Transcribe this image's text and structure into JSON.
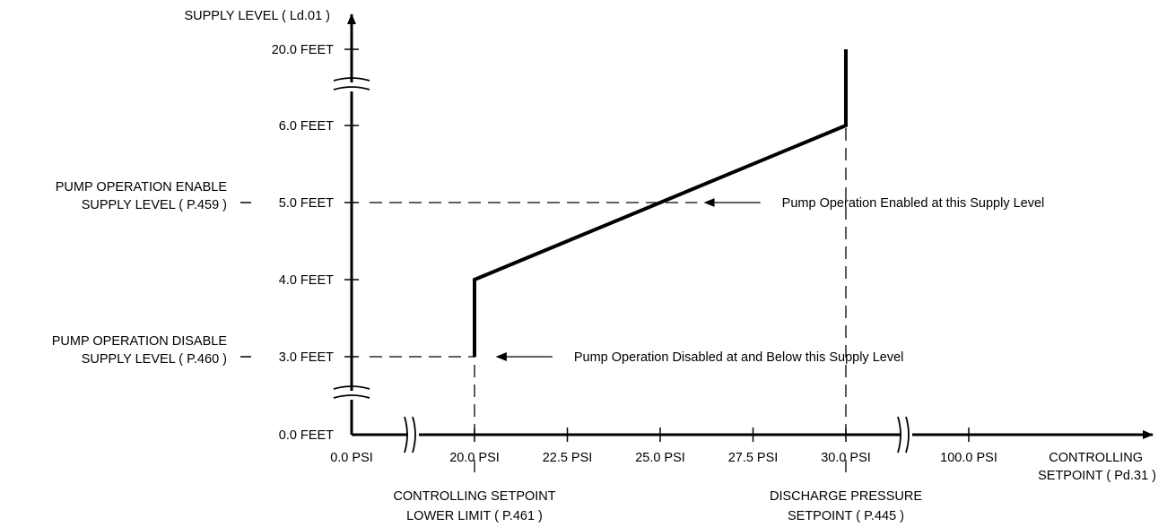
{
  "chart_data": {
    "type": "line",
    "ylabel": "SUPPLY LEVEL ( Ld.01 )",
    "xlabel": [
      "CONTROLLING",
      "SETPOINT ( Pd.31 )"
    ],
    "y_ticks": [
      {
        "value": 0.0,
        "label": "0.0 FEET"
      },
      {
        "value": 3.0,
        "label": "3.0 FEET"
      },
      {
        "value": 4.0,
        "label": "4.0 FEET"
      },
      {
        "value": 5.0,
        "label": "5.0 FEET"
      },
      {
        "value": 6.0,
        "label": "6.0 FEET"
      },
      {
        "value": 20.0,
        "label": "20.0 FEET"
      }
    ],
    "x_ticks": [
      {
        "value": 0.0,
        "label": "0.0 PSI"
      },
      {
        "value": 20.0,
        "label": "20.0 PSI"
      },
      {
        "value": 22.5,
        "label": "22.5 PSI"
      },
      {
        "value": 25.0,
        "label": "25.0 PSI"
      },
      {
        "value": 27.5,
        "label": "27.5 PSI"
      },
      {
        "value": 30.0,
        "label": "30.0 PSI"
      },
      {
        "value": 100.0,
        "label": "100.0 PSI"
      }
    ],
    "x_axis_breaks": [
      [
        0.0,
        20.0
      ],
      [
        30.0,
        100.0
      ]
    ],
    "y_axis_breaks": [
      [
        6.0,
        20.0
      ],
      [
        0.0,
        3.0
      ]
    ],
    "series": [
      {
        "x": [
          20.0,
          20.0,
          30.0,
          30.0
        ],
        "y": [
          3.0,
          4.0,
          6.0,
          20.0
        ]
      }
    ],
    "reference_lines": [
      {
        "axis": "y",
        "value": 5.0,
        "from_x": 0.0,
        "to_x": 26.0,
        "label": [
          "PUMP OPERATION ENABLE",
          "SUPPLY LEVEL ( P.459 )"
        ]
      },
      {
        "axis": "y",
        "value": 3.0,
        "from_x": 0.0,
        "to_x": 20.0,
        "label": [
          "PUMP OPERATION DISABLE",
          "SUPPLY LEVEL ( P.460 )"
        ]
      },
      {
        "axis": "x",
        "value": 20.0,
        "from_y": 0.0,
        "to_y": 3.0,
        "label": [
          "CONTROLLING SETPOINT",
          "LOWER LIMIT ( P.461 )"
        ]
      },
      {
        "axis": "x",
        "value": 30.0,
        "from_y": 0.0,
        "to_y": 6.0,
        "label": [
          "DISCHARGE PRESSURE",
          "SETPOINT ( P.445 )"
        ]
      }
    ],
    "annotations": [
      {
        "text": "Pump Operation Enabled at this Supply Level",
        "point_x": 26.2,
        "point_y": 5.0
      },
      {
        "text": "Pump Operation Disabled at and Below this Supply Level",
        "point_x": 20.6,
        "point_y": 3.0
      }
    ],
    "grid": false,
    "legend": "none"
  }
}
